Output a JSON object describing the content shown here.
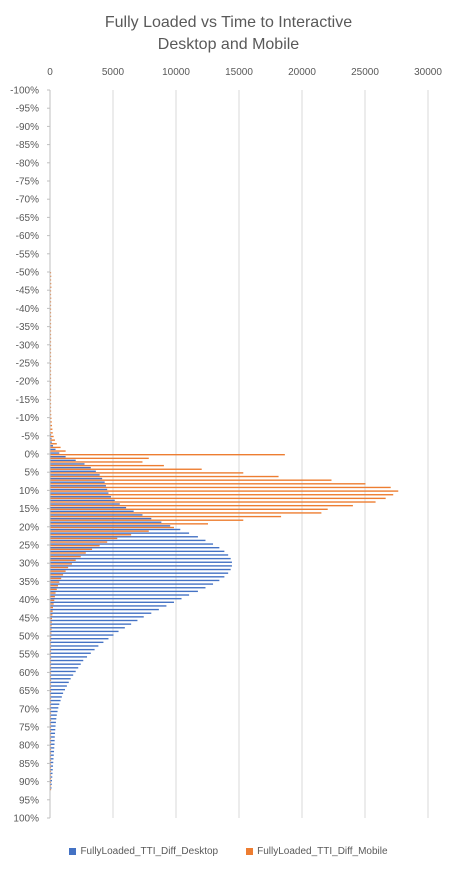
{
  "chart_data": {
    "type": "bar",
    "orientation": "horizontal",
    "title": "Fully Loaded vs Time to Interactive",
    "subtitle": "Desktop and Mobile",
    "xlim": [
      0,
      30000
    ],
    "x_ticks": [
      "0",
      "5000",
      "10000",
      "15000",
      "20000",
      "25000",
      "30000"
    ],
    "y_ticks": [
      "-100%",
      "-95%",
      "-90%",
      "-85%",
      "-80%",
      "-75%",
      "-70%",
      "-65%",
      "-60%",
      "-55%",
      "-50%",
      "-45%",
      "-40%",
      "-35%",
      "-30%",
      "-25%",
      "-20%",
      "-15%",
      "-10%",
      "-5%",
      "0%",
      "5%",
      "10%",
      "15%",
      "20%",
      "25%",
      "30%",
      "35%",
      "40%",
      "45%",
      "50%",
      "55%",
      "60%",
      "65%",
      "70%",
      "75%",
      "80%",
      "85%",
      "90%",
      "95%",
      "100%"
    ],
    "y_range": [
      -100,
      100
    ],
    "bin_step_percent": 1,
    "legend_position": "bottom",
    "grid": true,
    "categories": [
      -50,
      -49,
      -48,
      -47,
      -46,
      -45,
      -44,
      -43,
      -42,
      -41,
      -40,
      -39,
      -38,
      -37,
      -36,
      -35,
      -34,
      -33,
      -32,
      -31,
      -30,
      -29,
      -28,
      -27,
      -26,
      -25,
      -24,
      -23,
      -22,
      -21,
      -20,
      -19,
      -18,
      -17,
      -16,
      -15,
      -14,
      -13,
      -12,
      -11,
      -10,
      -9,
      -8,
      -7,
      -6,
      -5,
      -4,
      -3,
      -2,
      -1,
      0,
      1,
      2,
      3,
      4,
      5,
      6,
      7,
      8,
      9,
      10,
      11,
      12,
      13,
      14,
      15,
      16,
      17,
      18,
      19,
      20,
      21,
      22,
      23,
      24,
      25,
      26,
      27,
      28,
      29,
      30,
      31,
      32,
      33,
      34,
      35,
      36,
      37,
      38,
      39,
      40,
      41,
      42,
      43,
      44,
      45,
      46,
      47,
      48,
      49,
      50,
      51,
      52,
      53,
      54,
      55,
      56,
      57,
      58,
      59,
      60,
      61,
      62,
      63,
      64,
      65,
      66,
      67,
      68,
      69,
      70,
      71,
      72,
      73,
      74,
      75,
      76,
      77,
      78,
      79,
      80,
      81,
      82,
      83,
      84,
      85,
      86,
      87,
      88,
      89,
      90,
      91,
      92
    ],
    "series": [
      {
        "name": "FullyLoaded_TTI_Diff_Desktop",
        "color": "#4472C4",
        "values": [
          0,
          0,
          0,
          0,
          0,
          0,
          0,
          0,
          0,
          0,
          0,
          0,
          0,
          0,
          0,
          0,
          0,
          0,
          0,
          0,
          0,
          0,
          0,
          0,
          0,
          0,
          0,
          0,
          0,
          0,
          0,
          0,
          0,
          0,
          0,
          0,
          0,
          0,
          0,
          0,
          0,
          0,
          0,
          0,
          0,
          50,
          80,
          100,
          200,
          400,
          700,
          1200,
          2000,
          2700,
          3200,
          3600,
          3900,
          4100,
          4300,
          4400,
          4500,
          4600,
          4800,
          5100,
          5500,
          6000,
          6600,
          7300,
          8000,
          8800,
          9500,
          10300,
          11000,
          11700,
          12300,
          12900,
          13400,
          13800,
          14100,
          14300,
          14400,
          14400,
          14300,
          14100,
          13800,
          13400,
          12900,
          12300,
          11700,
          11000,
          10400,
          9800,
          9200,
          8600,
          8000,
          7400,
          6900,
          6400,
          5900,
          5400,
          5000,
          4600,
          4200,
          3800,
          3500,
          3200,
          2900,
          2600,
          2400,
          2200,
          2000,
          1800,
          1600,
          1450,
          1300,
          1150,
          1000,
          900,
          800,
          700,
          620,
          560,
          500,
          460,
          430,
          400,
          380,
          360,
          340,
          330,
          320,
          300,
          280,
          260,
          240,
          220,
          200,
          180,
          160,
          140,
          120,
          100,
          80
        ]
      },
      {
        "name": "FullyLoaded_TTI_Diff_Mobile",
        "color": "#ED7D31",
        "values": [
          40,
          60,
          50,
          60,
          70,
          50,
          40,
          60,
          50,
          40,
          40,
          40,
          50,
          40,
          40,
          40,
          40,
          40,
          50,
          40,
          40,
          40,
          40,
          40,
          40,
          40,
          40,
          40,
          40,
          40,
          40,
          40,
          40,
          40,
          40,
          40,
          40,
          40,
          50,
          60,
          80,
          100,
          120,
          150,
          180,
          250,
          350,
          500,
          800,
          1200,
          18600,
          7800,
          7300,
          9000,
          12000,
          15300,
          18100,
          22300,
          25000,
          27000,
          27600,
          27200,
          26600,
          25800,
          24000,
          22000,
          21500,
          18300,
          15300,
          12500,
          9800,
          7800,
          6400,
          5300,
          4500,
          3900,
          3300,
          2800,
          2400,
          2000,
          1700,
          1400,
          1200,
          1000,
          850,
          700,
          600,
          500,
          400,
          350,
          300,
          250,
          200,
          170,
          150,
          120,
          100,
          90,
          80,
          70,
          60,
          50,
          40,
          40,
          30,
          30,
          20,
          20,
          20,
          20,
          10,
          10,
          10,
          10,
          10,
          10,
          10,
          10,
          10,
          10,
          10,
          10,
          10,
          10,
          10,
          10,
          10,
          10,
          10,
          10,
          10,
          10,
          10,
          10,
          10,
          10,
          10,
          10,
          10,
          10,
          10,
          10,
          10
        ]
      }
    ]
  }
}
